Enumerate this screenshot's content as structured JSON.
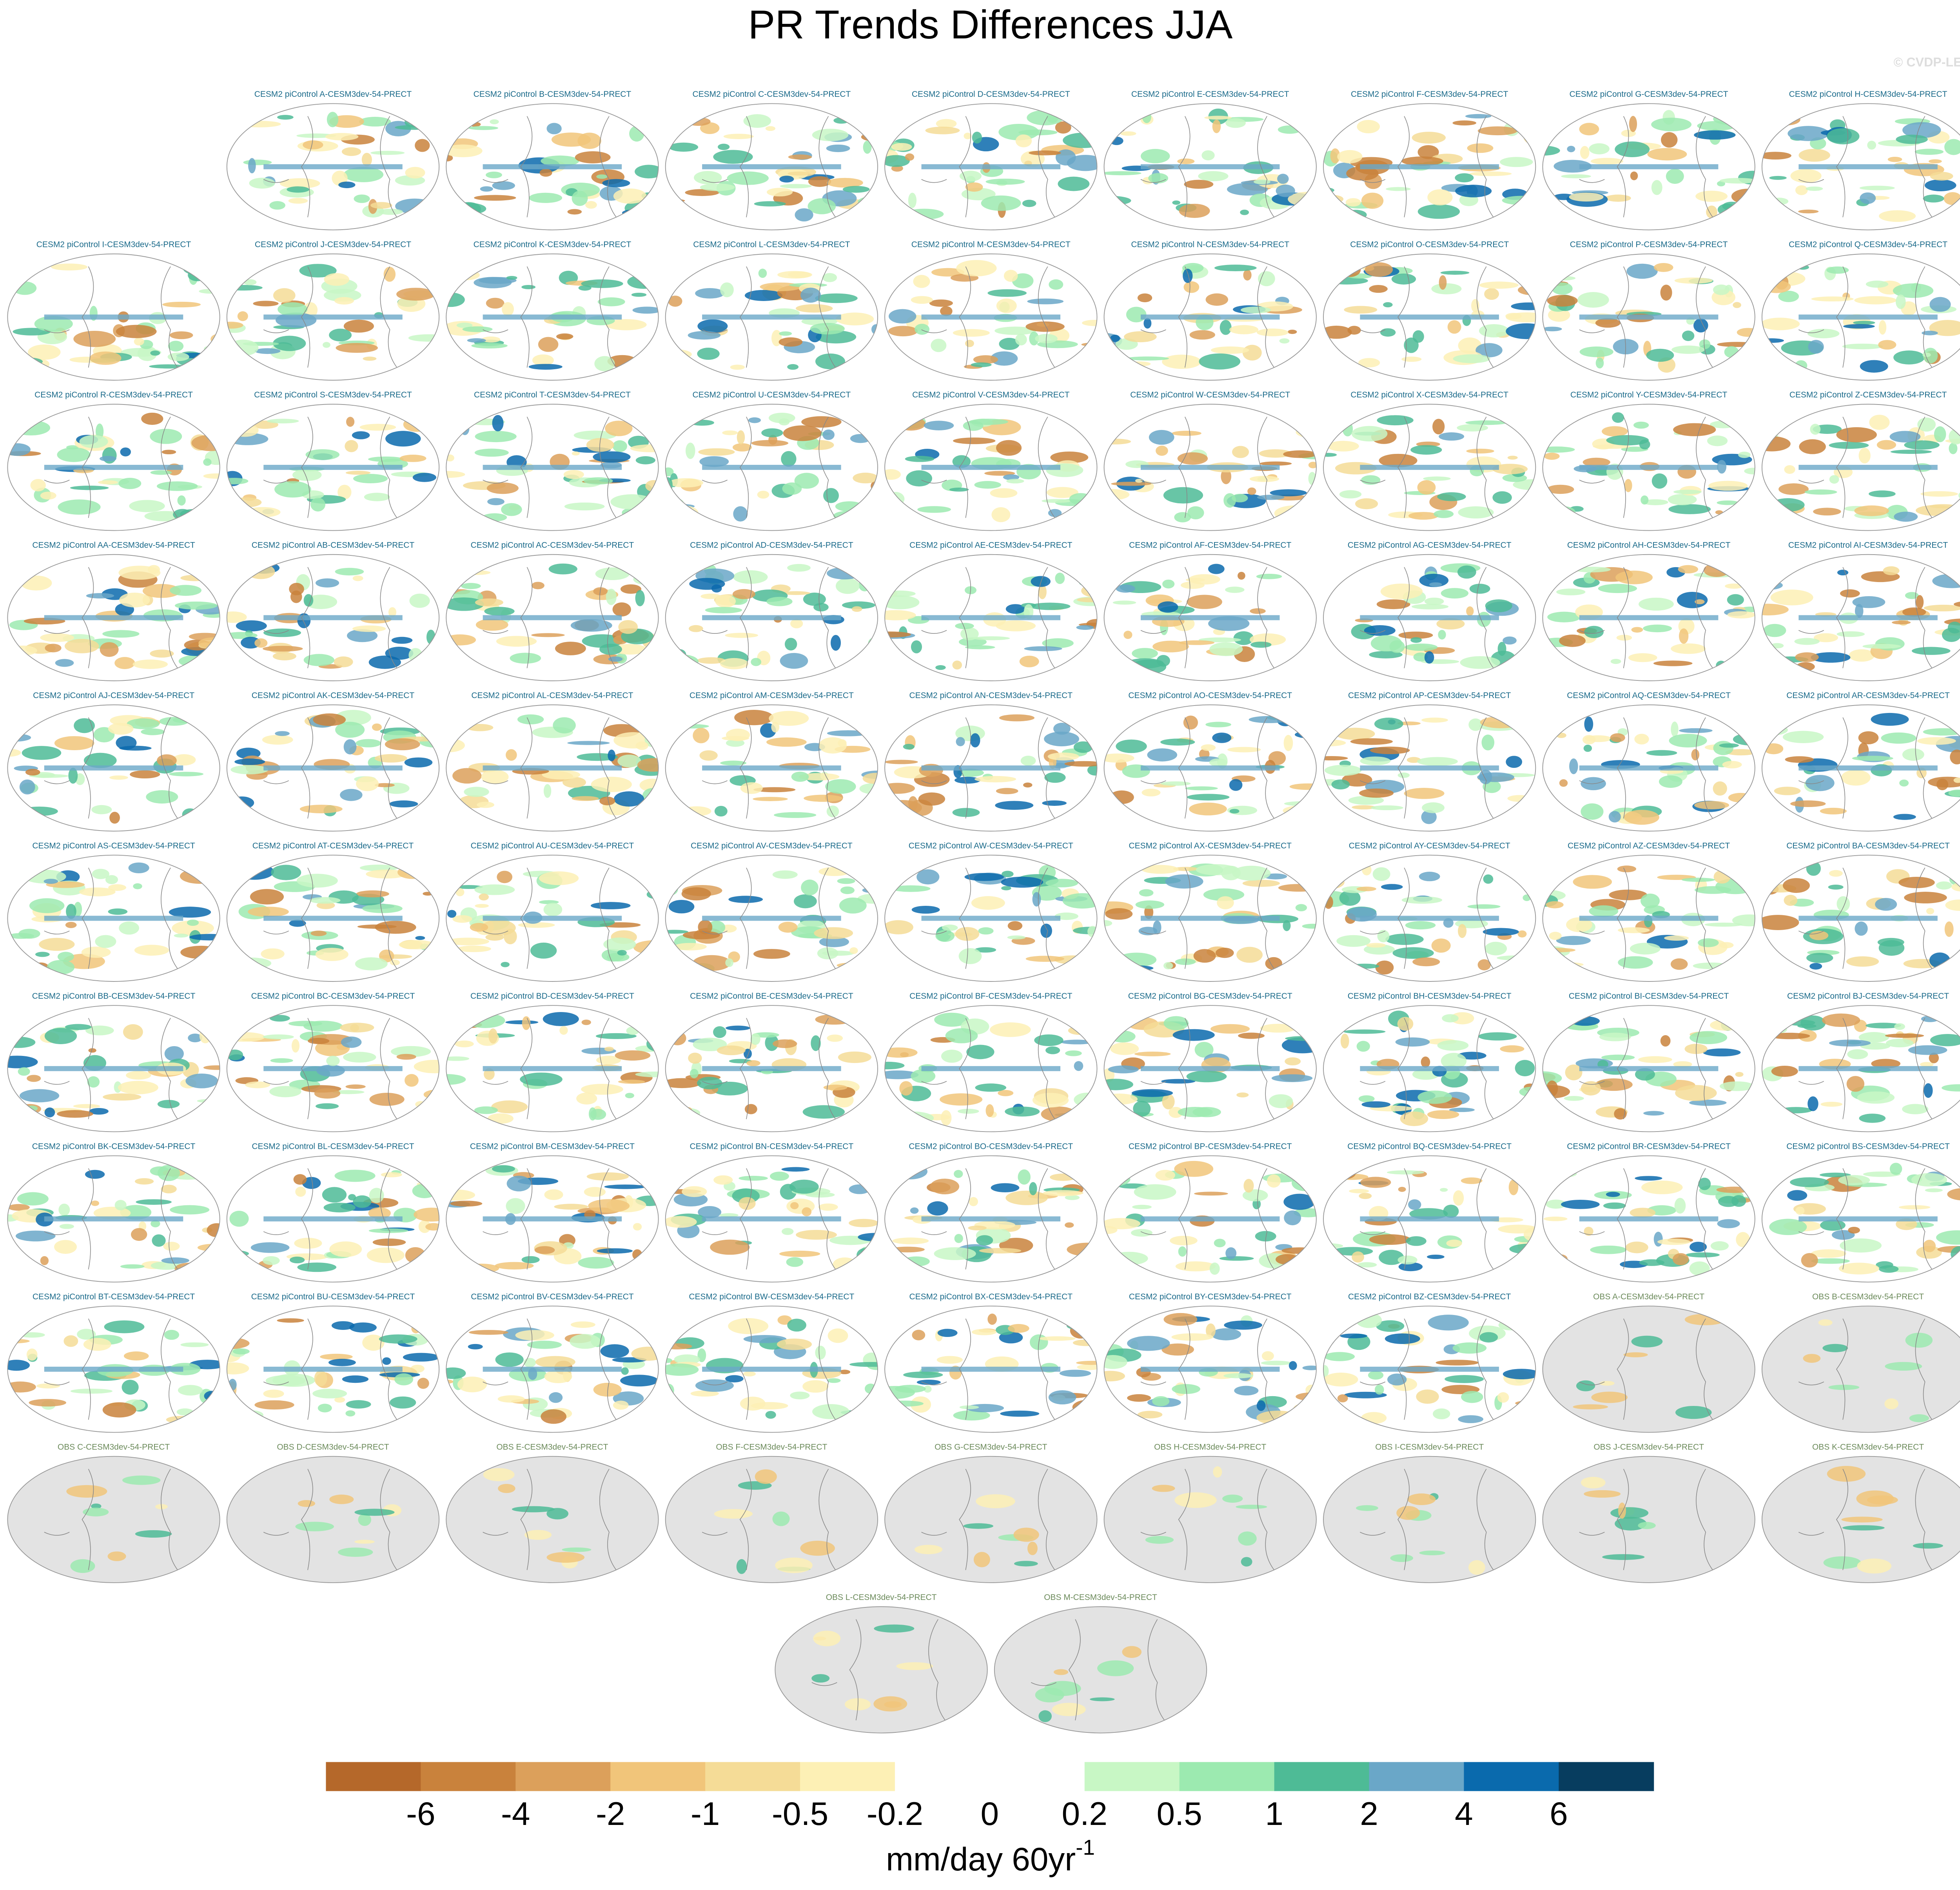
{
  "title": "PR Trends Differences JJA",
  "watermark": "© CVDP-LE",
  "panels": [
    "CESM2 piControl A-CESM3dev-54-PRECT",
    "CESM2 piControl B-CESM3dev-54-PRECT",
    "CESM2 piControl C-CESM3dev-54-PRECT",
    "CESM2 piControl D-CESM3dev-54-PRECT",
    "CESM2 piControl E-CESM3dev-54-PRECT",
    "CESM2 piControl F-CESM3dev-54-PRECT",
    "CESM2 piControl G-CESM3dev-54-PRECT",
    "CESM2 piControl H-CESM3dev-54-PRECT",
    "CESM2 piControl I-CESM3dev-54-PRECT",
    "CESM2 piControl J-CESM3dev-54-PRECT",
    "CESM2 piControl K-CESM3dev-54-PRECT",
    "CESM2 piControl L-CESM3dev-54-PRECT",
    "CESM2 piControl M-CESM3dev-54-PRECT",
    "CESM2 piControl N-CESM3dev-54-PRECT",
    "CESM2 piControl O-CESM3dev-54-PRECT",
    "CESM2 piControl P-CESM3dev-54-PRECT",
    "CESM2 piControl Q-CESM3dev-54-PRECT",
    "CESM2 piControl R-CESM3dev-54-PRECT",
    "CESM2 piControl S-CESM3dev-54-PRECT",
    "CESM2 piControl T-CESM3dev-54-PRECT",
    "CESM2 piControl U-CESM3dev-54-PRECT",
    "CESM2 piControl V-CESM3dev-54-PRECT",
    "CESM2 piControl W-CESM3dev-54-PRECT",
    "CESM2 piControl X-CESM3dev-54-PRECT",
    "CESM2 piControl Y-CESM3dev-54-PRECT",
    "CESM2 piControl Z-CESM3dev-54-PRECT",
    "CESM2 piControl AA-CESM3dev-54-PRECT",
    "CESM2 piControl AB-CESM3dev-54-PRECT",
    "CESM2 piControl AC-CESM3dev-54-PRECT",
    "CESM2 piControl AD-CESM3dev-54-PRECT",
    "CESM2 piControl AE-CESM3dev-54-PRECT",
    "CESM2 piControl AF-CESM3dev-54-PRECT",
    "CESM2 piControl AG-CESM3dev-54-PRECT",
    "CESM2 piControl AH-CESM3dev-54-PRECT",
    "CESM2 piControl AI-CESM3dev-54-PRECT",
    "CESM2 piControl AJ-CESM3dev-54-PRECT",
    "CESM2 piControl AK-CESM3dev-54-PRECT",
    "CESM2 piControl AL-CESM3dev-54-PRECT",
    "CESM2 piControl AM-CESM3dev-54-PRECT",
    "CESM2 piControl AN-CESM3dev-54-PRECT",
    "CESM2 piControl AO-CESM3dev-54-PRECT",
    "CESM2 piControl AP-CESM3dev-54-PRECT",
    "CESM2 piControl AQ-CESM3dev-54-PRECT",
    "CESM2 piControl AR-CESM3dev-54-PRECT",
    "CESM2 piControl AS-CESM3dev-54-PRECT",
    "CESM2 piControl AT-CESM3dev-54-PRECT",
    "CESM2 piControl AU-CESM3dev-54-PRECT",
    "CESM2 piControl AV-CESM3dev-54-PRECT",
    "CESM2 piControl AW-CESM3dev-54-PRECT",
    "CESM2 piControl AX-CESM3dev-54-PRECT",
    "CESM2 piControl AY-CESM3dev-54-PRECT",
    "CESM2 piControl AZ-CESM3dev-54-PRECT",
    "CESM2 piControl BA-CESM3dev-54-PRECT",
    "CESM2 piControl BB-CESM3dev-54-PRECT",
    "CESM2 piControl BC-CESM3dev-54-PRECT",
    "CESM2 piControl BD-CESM3dev-54-PRECT",
    "CESM2 piControl BE-CESM3dev-54-PRECT",
    "CESM2 piControl BF-CESM3dev-54-PRECT",
    "CESM2 piControl BG-CESM3dev-54-PRECT",
    "CESM2 piControl BH-CESM3dev-54-PRECT",
    "CESM2 piControl BI-CESM3dev-54-PRECT",
    "CESM2 piControl BJ-CESM3dev-54-PRECT",
    "CESM2 piControl BK-CESM3dev-54-PRECT",
    "CESM2 piControl BL-CESM3dev-54-PRECT",
    "CESM2 piControl BM-CESM3dev-54-PRECT",
    "CESM2 piControl BN-CESM3dev-54-PRECT",
    "CESM2 piControl BO-CESM3dev-54-PRECT",
    "CESM2 piControl BP-CESM3dev-54-PRECT",
    "CESM2 piControl BQ-CESM3dev-54-PRECT",
    "CESM2 piControl BR-CESM3dev-54-PRECT",
    "CESM2 piControl BS-CESM3dev-54-PRECT",
    "CESM2 piControl BT-CESM3dev-54-PRECT",
    "CESM2 piControl BU-CESM3dev-54-PRECT",
    "CESM2 piControl BV-CESM3dev-54-PRECT",
    "CESM2 piControl BW-CESM3dev-54-PRECT",
    "CESM2 piControl BX-CESM3dev-54-PRECT",
    "CESM2 piControl BY-CESM3dev-54-PRECT",
    "CESM2 piControl BZ-CESM3dev-54-PRECT",
    "OBS A-CESM3dev-54-PRECT",
    "OBS B-CESM3dev-54-PRECT",
    "OBS C-CESM3dev-54-PRECT",
    "OBS D-CESM3dev-54-PRECT",
    "OBS E-CESM3dev-54-PRECT",
    "OBS F-CESM3dev-54-PRECT",
    "OBS G-CESM3dev-54-PRECT",
    "OBS H-CESM3dev-54-PRECT",
    "OBS I-CESM3dev-54-PRECT",
    "OBS J-CESM3dev-54-PRECT",
    "OBS K-CESM3dev-54-PRECT",
    "OBS L-CESM3dev-54-PRECT",
    "OBS M-CESM3dev-54-PRECT"
  ],
  "colorbar": {
    "ticks": [
      -6,
      -4,
      -2,
      -1,
      -0.5,
      -0.2,
      0,
      0.2,
      0.5,
      1,
      2,
      4,
      6
    ],
    "colors": [
      "#b5682a",
      "#c9823c",
      "#dca05b",
      "#f1c57a",
      "#f5dc97",
      "#fdf0b5",
      "#ffffff",
      "#ffffff",
      "#c8f7c5",
      "#9ceab0",
      "#4ebb96",
      "#6aa7c8",
      "#0a6aad",
      "#073d5f"
    ],
    "units": "mm/day 60yr",
    "units_exponent": "-1"
  }
}
